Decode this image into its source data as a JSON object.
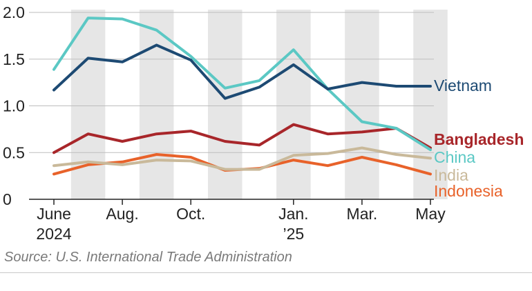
{
  "chart_data": {
    "type": "line",
    "title": "",
    "xlabel": "",
    "ylabel": "",
    "ylim": [
      0,
      2.0
    ],
    "y_ticks": [
      "0",
      "0.5",
      "1.0",
      "1.5",
      "2.0"
    ],
    "x_count": 12,
    "x_tick_labels": [
      {
        "index": 0,
        "lines": [
          "June",
          "2024"
        ]
      },
      {
        "index": 2,
        "lines": [
          "Aug.",
          ""
        ]
      },
      {
        "index": 4,
        "lines": [
          "Oct.",
          ""
        ]
      },
      {
        "index": 7,
        "lines": [
          "Jan.",
          "’25"
        ]
      },
      {
        "index": 9,
        "lines": [
          "Mar.",
          ""
        ]
      },
      {
        "index": 11,
        "lines": [
          "May",
          ""
        ]
      }
    ],
    "shaded_bands": [
      1,
      3,
      5,
      7,
      9,
      11
    ],
    "grid": true,
    "series": [
      {
        "name": "Indonesia",
        "color": "#e8622a",
        "bold": false,
        "values": [
          0.27,
          0.37,
          0.4,
          0.48,
          0.45,
          0.31,
          0.33,
          0.42,
          0.36,
          0.45,
          0.37,
          0.27
        ]
      },
      {
        "name": "India",
        "color": "#c9b99a",
        "bold": false,
        "values": [
          0.36,
          0.4,
          0.37,
          0.42,
          0.41,
          0.32,
          0.32,
          0.47,
          0.49,
          0.55,
          0.48,
          0.44
        ]
      },
      {
        "name": "Bangladesh",
        "color": "#a8262a",
        "bold": true,
        "values": [
          0.5,
          0.7,
          0.62,
          0.7,
          0.73,
          0.62,
          0.58,
          0.8,
          0.7,
          0.72,
          0.76,
          0.55
        ]
      },
      {
        "name": "China",
        "color": "#5bc8c4",
        "bold": false,
        "values": [
          1.39,
          1.94,
          1.93,
          1.81,
          1.53,
          1.19,
          1.27,
          1.6,
          1.18,
          0.83,
          0.76,
          0.53
        ]
      },
      {
        "name": "Vietnam",
        "color": "#1d4a73",
        "bold": false,
        "values": [
          1.17,
          1.51,
          1.47,
          1.65,
          1.49,
          1.08,
          1.2,
          1.44,
          1.18,
          1.25,
          1.21,
          1.21
        ]
      }
    ]
  },
  "source_text": "Source: U.S. International Trade Administration"
}
